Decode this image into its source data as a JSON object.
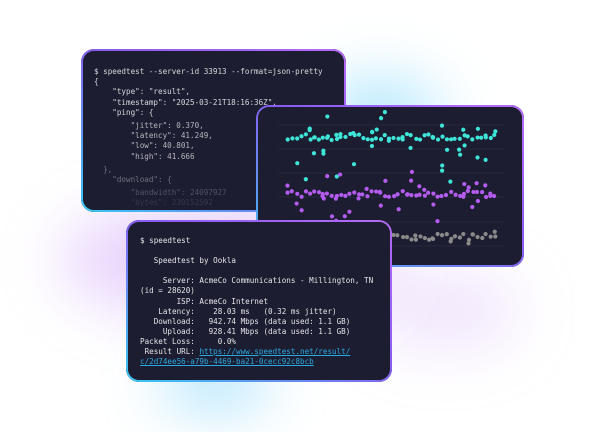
{
  "json_terminal": {
    "lines": [
      "$ speedtest --server-id 33913 --format=json-pretty",
      "{",
      "    \"type\": \"result\",",
      "    \"timestamp\": \"2025-03-21T18:16:36Z\",",
      "    \"ping\": {",
      "        \"jitter\": 0.370,",
      "        \"latency\": 41.249,",
      "        \"low\": 40.801,",
      "        \"high\": 41.666",
      "  },",
      "    \"download\": {",
      "        \"bandwidth\": 24097927",
      "        \"bytes\": 239152592"
    ]
  },
  "dot_chart": {
    "colors": {
      "download": "#3ee6da",
      "upload": "#b45cf0",
      "latency": "#8a8a8a",
      "grid": "#2a2c46"
    }
  },
  "cli_terminal": {
    "lines": [
      "$ speedtest",
      "",
      "   Speedtest by Ookla",
      "",
      "     Server: AcmeCo Communications - Millington, TN",
      "(id = 28620)",
      "        ISP: AcmeCo Internet",
      "    Latency:    28.03 ms   (0.32 ms jitter)",
      "   Download:   942.74 Mbps (data used: 1.1 GB)",
      "     Upload:   928.41 Mbps (data used: 1.1 GB)",
      "Packet Loss:     0.0%"
    ],
    "result_label": " Result URL: ",
    "result_url_1": "https://www.speedtest.net/result/",
    "result_url_2": "c/2d74ee56-a79b-4469-ba21-0cecc92c8bcb"
  }
}
